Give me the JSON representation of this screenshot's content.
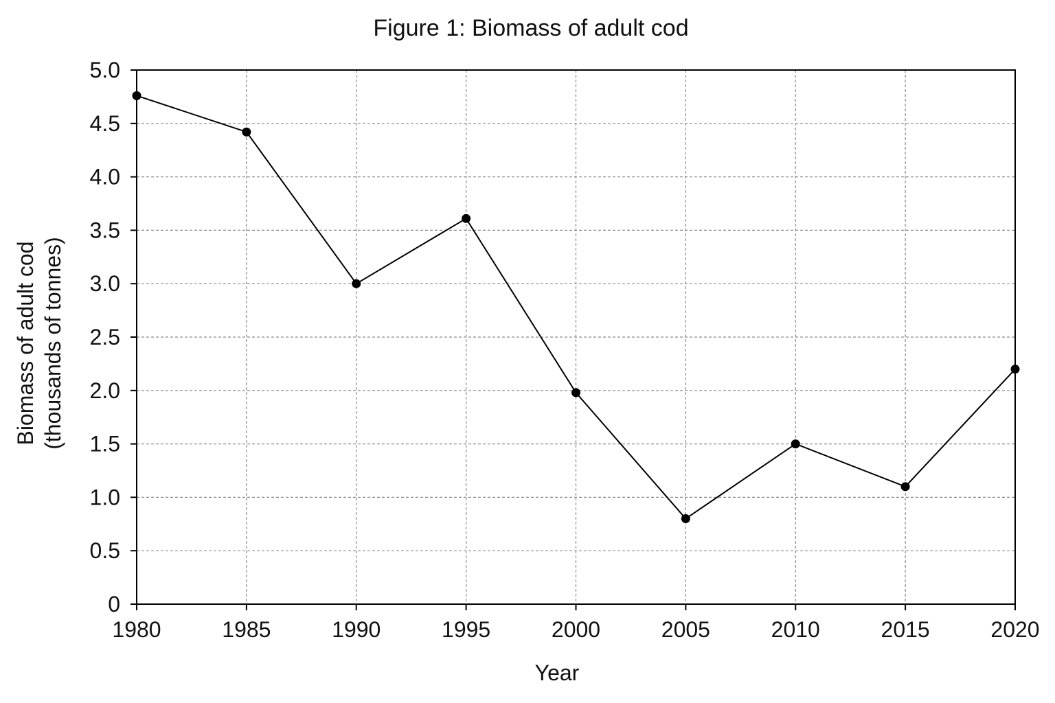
{
  "chart_data": {
    "type": "line",
    "title": "Figure 1: Biomass of adult cod",
    "xlabel": "Year",
    "ylabel_lines": [
      "Biomass of adult cod",
      "(thousands of tonnes)"
    ],
    "x": [
      1980,
      1985,
      1990,
      1995,
      2000,
      2005,
      2010,
      2015,
      2020
    ],
    "series": [
      {
        "values": [
          4.76,
          4.42,
          3.0,
          3.61,
          1.98,
          0.8,
          1.5,
          1.1,
          2.2
        ]
      }
    ],
    "xlim": [
      1980,
      2020
    ],
    "ylim": [
      0,
      5
    ],
    "x_ticks": [
      "1980",
      "1985",
      "1990",
      "1995",
      "2000",
      "2005",
      "2010",
      "2015",
      "2020"
    ],
    "y_ticks": [
      "0",
      "0.5",
      "1.0",
      "1.5",
      "2.0",
      "2.5",
      "3.0",
      "3.5",
      "4.0",
      "4.5",
      "5.0"
    ],
    "grid": true,
    "grid_style": "dashed",
    "line_color": "#000000",
    "marker": "filled-circle"
  }
}
